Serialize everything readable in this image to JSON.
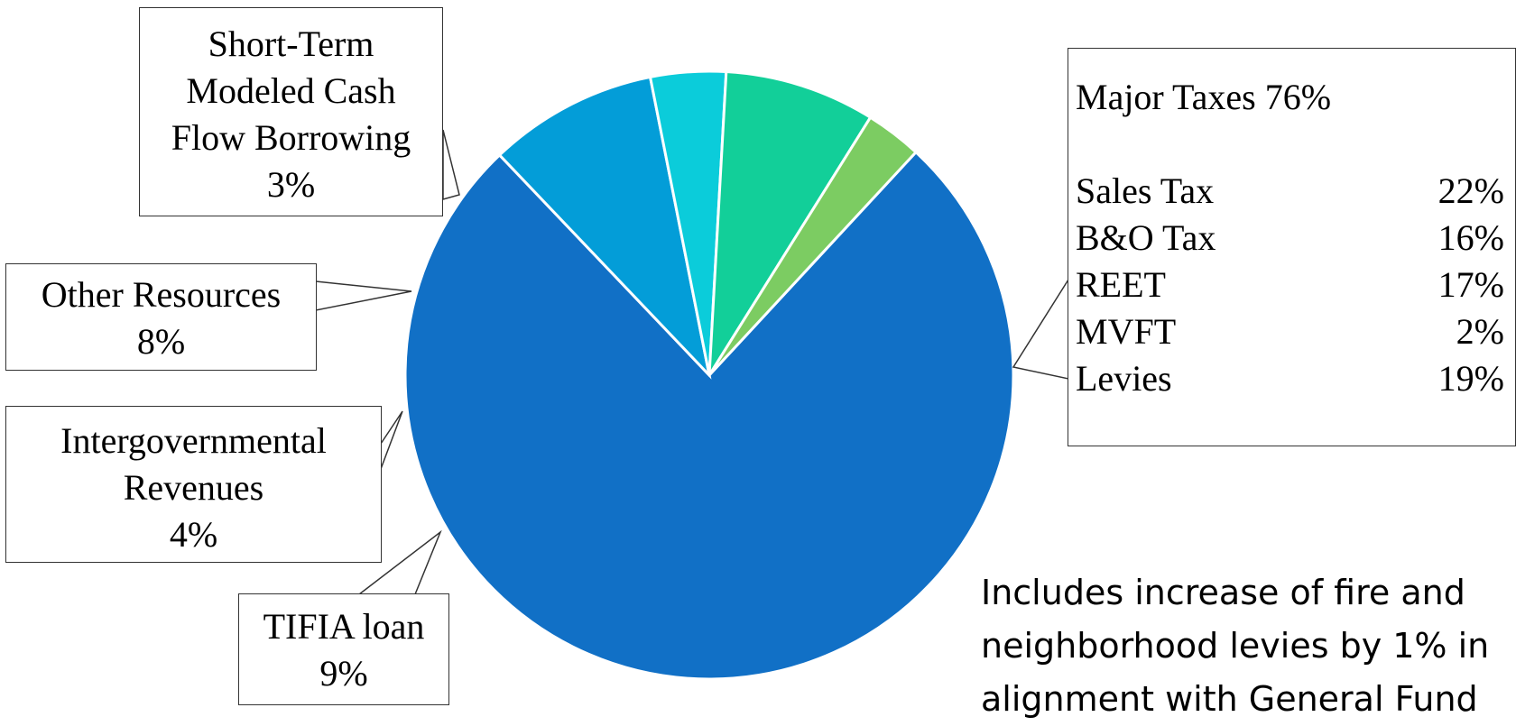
{
  "chart_data": {
    "type": "pie",
    "slices": [
      {
        "label": "Major Taxes",
        "value": 76,
        "color": "#1170C6"
      },
      {
        "label": "TIFIA loan",
        "value": 9,
        "color": "#039DD8"
      },
      {
        "label": "Intergovernmental Revenues",
        "value": 4,
        "color": "#0BCCDA"
      },
      {
        "label": "Other Resources",
        "value": 8,
        "color": "#12CF99"
      },
      {
        "label": "Short-Term Modeled Cash Flow Borrowing",
        "value": 3,
        "color": "#7CCC62"
      }
    ],
    "labels": {
      "short_term": [
        "Short-Term",
        "Modeled Cash",
        "Flow Borrowing",
        "3%"
      ],
      "other": [
        "Other Resources",
        "8%"
      ],
      "intergov": [
        "Intergovernmental",
        "Revenues",
        "4%"
      ],
      "tifia": [
        "TIFIA loan",
        "9%"
      ]
    },
    "major_taxes": {
      "heading": "Major Taxes 76%",
      "items": [
        {
          "name": "Sales Tax",
          "pct": "22%"
        },
        {
          "name": "B&O Tax",
          "pct": "16%"
        },
        {
          "name": "REET",
          "pct": "17%"
        },
        {
          "name": "MVFT",
          "pct": "2%"
        },
        {
          "name": "Levies",
          "pct": "19%"
        }
      ]
    },
    "note": [
      "Includes increase of fire and",
      "neighborhood levies by 1% in",
      "alignment with General Fund"
    ]
  }
}
